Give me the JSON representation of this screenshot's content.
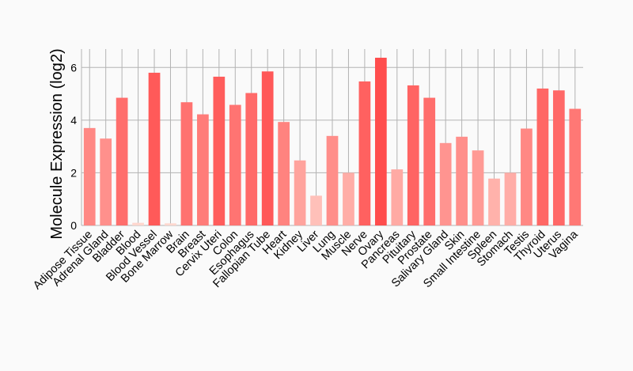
{
  "chart_data": {
    "type": "bar",
    "title": "",
    "xlabel": "",
    "ylabel": "Molecule Expression (log2)",
    "ylim": [
      0,
      6.7
    ],
    "yticks": [
      0,
      2,
      4,
      6
    ],
    "grid": true,
    "categories": [
      "Adipose Tissue",
      "Adrenal Gland",
      "Bladder",
      "Blood",
      "Blood Vessel",
      "Bone Marrow",
      "Brain",
      "Breast",
      "Cervix Uteri",
      "Colon",
      "Esophagus",
      "Fallopian Tube",
      "Heart",
      "Kidney",
      "Liver",
      "Lung",
      "Muscle",
      "Nerve",
      "Ovary",
      "Pancreas",
      "Pituitary",
      "Prostate",
      "Salivary Gland",
      "Skin",
      "Small Intestine",
      "Spleen",
      "Stomach",
      "Testis",
      "Thyroid",
      "Uterus",
      "Vagina"
    ],
    "values": [
      3.7,
      3.3,
      4.85,
      0.1,
      5.8,
      0.08,
      4.68,
      4.22,
      5.65,
      4.58,
      5.03,
      5.85,
      3.93,
      2.47,
      1.13,
      3.4,
      2.0,
      5.47,
      6.37,
      2.13,
      5.32,
      4.85,
      3.13,
      3.37,
      2.85,
      1.78,
      2.0,
      3.68,
      5.2,
      5.13,
      4.43
    ],
    "color_low": "#ffd9d0",
    "color_high": "#ff4d4d"
  }
}
